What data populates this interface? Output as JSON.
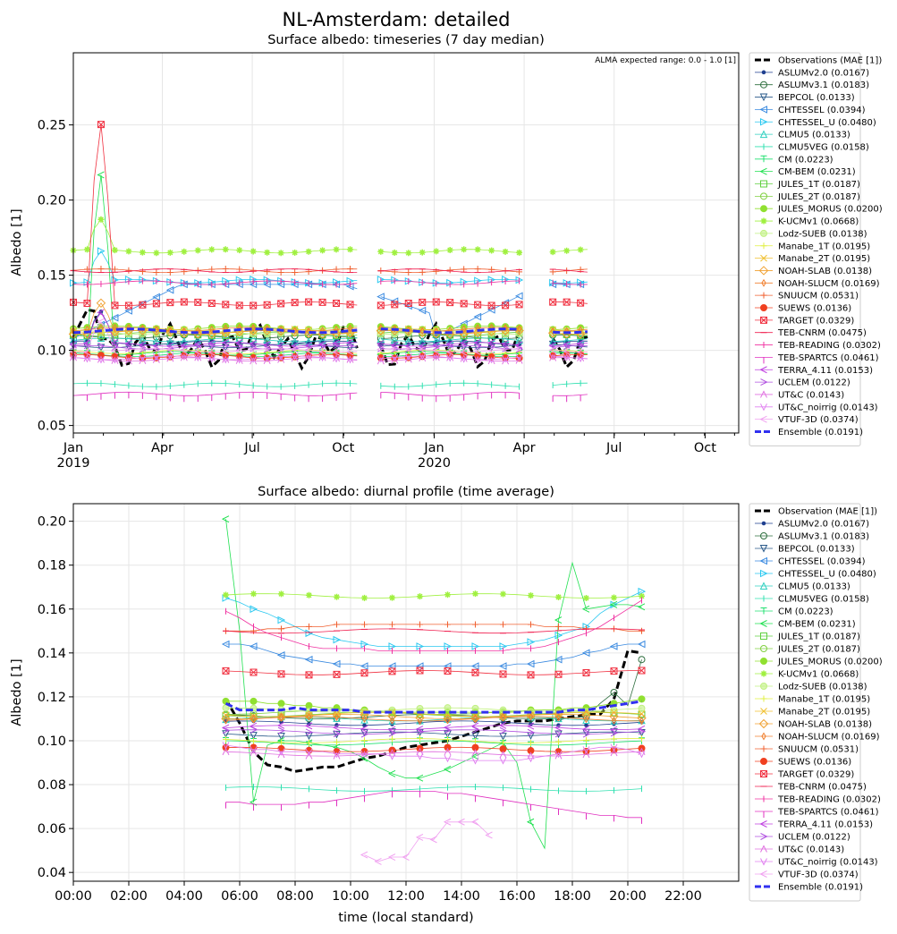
{
  "figure": {
    "title": "NL-Amsterdam: detailed",
    "note": "ALMA expected range: 0.0 - 1.0 [1]"
  },
  "chart_data": [
    {
      "type": "line",
      "title": "Surface albedo: timeseries (7 day median)",
      "xlabel": "",
      "ylabel": "Albedo [1]",
      "x_ticks": [
        "Jan",
        "Apr",
        "Jul",
        "Oct",
        "Jan",
        "Apr",
        "Jul",
        "Oct"
      ],
      "x_tick_years": [
        "2019",
        "",
        "",
        "",
        "2020",
        "",
        "",
        ""
      ],
      "y_ticks": [
        "0.05",
        "0.10",
        "0.15",
        "0.20",
        "0.25"
      ],
      "ylim": [
        0.045,
        0.298
      ],
      "grid": true,
      "legend_placement": "outside right",
      "segments": [
        [
          0,
          287
        ],
        [
          311,
          457
        ],
        [
          485,
          525
        ]
      ],
      "series": [
        {
          "name": "Observations (MAE [1])",
          "color": "#000000",
          "style": "dashed-thick",
          "base": 0.103,
          "pattern": "obs"
        },
        {
          "name": "ASLUMv2.0 (0.0167)",
          "color": "#1f3f8f",
          "marker": "dot",
          "base": 0.105
        },
        {
          "name": "ASLUMv3.1 (0.0183)",
          "color": "#2f6f3f",
          "marker": "circle",
          "base": 0.109
        },
        {
          "name": "BEPCOL (0.0133)",
          "color": "#2a5a8a",
          "marker": "tri-down",
          "base": 0.103
        },
        {
          "name": "CHTESSEL (0.0394)",
          "color": "#3a8ae0",
          "marker": "tri-left",
          "base": 0.143
        },
        {
          "name": "CHTESSEL_U (0.0480)",
          "color": "#2ac8f0",
          "marker": "tri-right",
          "base": 0.146
        },
        {
          "name": "CLMU5 (0.0133)",
          "color": "#30d0c0",
          "marker": "tri-up",
          "base": 0.107
        },
        {
          "name": "CLMU5VEG (0.0158)",
          "color": "#30e0b0",
          "marker": "vline",
          "base": 0.077
        },
        {
          "name": "CM (0.0223)",
          "color": "#20e070",
          "marker": "tick",
          "base": 0.097
        },
        {
          "name": "CM-BEM (0.0231)",
          "color": "#20e050",
          "marker": "chev-left",
          "base": 0.098
        },
        {
          "name": "JULES_1T (0.0187)",
          "color": "#60d040",
          "marker": "square",
          "base": 0.111
        },
        {
          "name": "JULES_2T (0.0187)",
          "color": "#80d040",
          "marker": "circle",
          "base": 0.112
        },
        {
          "name": "JULES_MORUS (0.0200)",
          "color": "#90e030",
          "marker": "oct",
          "base": 0.115
        },
        {
          "name": "K-UCMv1 (0.0668)",
          "color": "#a0f040",
          "marker": "star",
          "base": 0.166
        },
        {
          "name": "Lodz-SUEB (0.0138)",
          "color": "#c0f080",
          "marker": "circle-fill",
          "base": 0.112
        },
        {
          "name": "Manabe_1T (0.0195)",
          "color": "#e0f040",
          "marker": "plus",
          "base": 0.099
        },
        {
          "name": "Manabe_2T (0.0195)",
          "color": "#f0c030",
          "marker": "x",
          "base": 0.113
        },
        {
          "name": "NOAH-SLAB (0.0138)",
          "color": "#f0a030",
          "marker": "diamond",
          "base": 0.112
        },
        {
          "name": "NOAH-SLUCM (0.0169)",
          "color": "#f08030",
          "marker": "thin-diamond",
          "base": 0.114
        },
        {
          "name": "SNUUCM (0.0531)",
          "color": "#f06030",
          "marker": "plus",
          "base": 0.153
        },
        {
          "name": "SUEWS (0.0136)",
          "color": "#f04020",
          "marker": "oct",
          "base": 0.096
        },
        {
          "name": "TARGET (0.0329)",
          "color": "#f03040",
          "marker": "square-x",
          "base": 0.131
        },
        {
          "name": "TEB-CNRM (0.0475)",
          "color": "#f02050",
          "marker": "hline",
          "base": 0.153
        },
        {
          "name": "TEB-READING (0.0302)",
          "color": "#f030a0",
          "marker": "vline",
          "base": 0.145
        },
        {
          "name": "TEB-SPARTCS (0.0461)",
          "color": "#e030c0",
          "marker": "vline-down",
          "base": 0.071
        },
        {
          "name": "TERRA_4.11 (0.0153)",
          "color": "#c040e0",
          "marker": "chev-left",
          "base": 0.104
        },
        {
          "name": "UCLEM (0.0122)",
          "color": "#b050e0",
          "marker": "chev-right",
          "base": 0.102
        },
        {
          "name": "UT&C (0.0143)",
          "color": "#e070e0",
          "marker": "chev-up",
          "base": 0.094
        },
        {
          "name": "UT&C_noirrig (0.0143)",
          "color": "#e080f0",
          "marker": "chev-down",
          "base": 0.095
        },
        {
          "name": "VTUF-3D (0.0374)",
          "color": "#f0a0f0",
          "marker": "chev-left",
          "base": 0.1
        },
        {
          "name": "Ensemble (0.0191)",
          "color": "#3030f0",
          "style": "dashed-thick",
          "base": 0.113
        }
      ]
    },
    {
      "type": "line",
      "title": "Surface albedo: diurnal profile (time average)",
      "xlabel": "time (local standard)",
      "ylabel": "Albedo [1]",
      "x_ticks": [
        "00:00",
        "02:00",
        "04:00",
        "06:00",
        "08:00",
        "10:00",
        "12:00",
        "14:00",
        "16:00",
        "18:00",
        "20:00",
        "22:00"
      ],
      "y_ticks": [
        "0.04",
        "0.06",
        "0.08",
        "0.10",
        "0.12",
        "0.14",
        "0.16",
        "0.18",
        "0.20"
      ],
      "xlim": [
        0,
        24
      ],
      "ylim": [
        0.036,
        0.208
      ],
      "grid": true,
      "legend_placement": "outside right",
      "hours": [
        5.5,
        6,
        6.5,
        7,
        7.5,
        8,
        8.5,
        9,
        9.5,
        10,
        10.5,
        11,
        11.5,
        12,
        12.5,
        13,
        13.5,
        14,
        14.5,
        15,
        15.5,
        16,
        16.5,
        17,
        17.5,
        18,
        18.5,
        19,
        19.5,
        20,
        20.5
      ],
      "series": [
        {
          "name": "Observation (MAE [1])",
          "color": "#000000",
          "style": "dashed-thick",
          "values": [
            0.119,
            0.108,
            0.095,
            0.089,
            0.088,
            0.086,
            0.087,
            0.088,
            0.088,
            0.09,
            0.092,
            0.093,
            0.095,
            0.097,
            0.098,
            0.099,
            0.1,
            0.102,
            0.104,
            0.106,
            0.108,
            0.109,
            0.109,
            0.109,
            0.11,
            0.111,
            0.112,
            0.112,
            0.119,
            0.141,
            0.14
          ]
        },
        {
          "name": "ASLUMv2.0 (0.0167)",
          "color": "#1f3f8f",
          "marker": "dot",
          "base": 0.108
        },
        {
          "name": "ASLUMv3.1 (0.0183)",
          "color": "#2f6f3f",
          "marker": "circle",
          "base": 0.111,
          "tail": [
            0.117,
            0.122,
            0.116,
            0.137
          ]
        },
        {
          "name": "BEPCOL (0.0133)",
          "color": "#2a5a8a",
          "marker": "tri-down",
          "base": 0.103
        },
        {
          "name": "CHTESSEL (0.0394)",
          "color": "#3a8ae0",
          "marker": "tri-left",
          "values": [
            0.144,
            0.144,
            0.143,
            0.141,
            0.139,
            0.138,
            0.137,
            0.136,
            0.135,
            0.135,
            0.134,
            0.134,
            0.134,
            0.134,
            0.134,
            0.134,
            0.134,
            0.134,
            0.134,
            0.134,
            0.134,
            0.135,
            0.135,
            0.136,
            0.137,
            0.138,
            0.14,
            0.141,
            0.143,
            0.144,
            0.144
          ]
        },
        {
          "name": "CHTESSEL_U (0.0480)",
          "color": "#2ac8f0",
          "marker": "tri-right",
          "values": [
            0.165,
            0.163,
            0.16,
            0.158,
            0.155,
            0.152,
            0.149,
            0.147,
            0.146,
            0.145,
            0.144,
            0.143,
            0.143,
            0.143,
            0.143,
            0.143,
            0.143,
            0.143,
            0.143,
            0.143,
            0.143,
            0.144,
            0.145,
            0.146,
            0.148,
            0.15,
            0.152,
            0.158,
            0.162,
            0.165,
            0.168
          ]
        },
        {
          "name": "CLMU5 (0.0133)",
          "color": "#30d0c0",
          "marker": "tri-up",
          "base": 0.11
        },
        {
          "name": "CLMU5VEG (0.0158)",
          "color": "#30e0b0",
          "marker": "vline",
          "base": 0.078
        },
        {
          "name": "CM (0.0223)",
          "color": "#20e070",
          "marker": "tick",
          "base": 0.099
        },
        {
          "name": "CM-BEM (0.0231)",
          "color": "#20e050",
          "marker": "chev-left",
          "values": [
            0.201,
            0.15,
            0.072,
            0.098,
            0.1,
            0.1,
            0.099,
            0.098,
            0.097,
            0.095,
            0.092,
            0.088,
            0.085,
            0.083,
            0.083,
            0.085,
            0.087,
            0.09,
            0.093,
            0.096,
            0.099,
            0.09,
            0.063,
            0.051,
            0.155,
            0.181,
            0.16,
            0.161,
            0.162,
            0.162,
            0.161
          ]
        },
        {
          "name": "JULES_1T (0.0187)",
          "color": "#60d040",
          "marker": "square",
          "base": 0.112
        },
        {
          "name": "JULES_2T (0.0187)",
          "color": "#80d040",
          "marker": "circle",
          "base": 0.113
        },
        {
          "name": "JULES_MORUS (0.0200)",
          "color": "#90e030",
          "marker": "oct",
          "values": [
            0.118,
            0.118,
            0.118,
            0.117,
            0.117,
            0.116,
            0.116,
            0.115,
            0.115,
            0.114,
            0.114,
            0.113,
            0.113,
            0.113,
            0.113,
            0.113,
            0.113,
            0.113,
            0.113,
            0.113,
            0.113,
            0.113,
            0.114,
            0.114,
            0.114,
            0.115,
            0.115,
            0.116,
            0.117,
            0.118,
            0.119
          ]
        },
        {
          "name": "K-UCMv1 (0.0668)",
          "color": "#a0f040",
          "marker": "star",
          "base": 0.166
        },
        {
          "name": "Lodz-SUEB (0.0138)",
          "color": "#c0f080",
          "marker": "circle-fill",
          "base": 0.114
        },
        {
          "name": "Manabe_1T (0.0195)",
          "color": "#e0f040",
          "marker": "plus",
          "base": 0.1
        },
        {
          "name": "Manabe_2T (0.0195)",
          "color": "#f0c030",
          "marker": "x",
          "base": 0.112
        },
        {
          "name": "NOAH-SLAB (0.0138)",
          "color": "#f0a030",
          "marker": "diamond",
          "base": 0.111
        },
        {
          "name": "NOAH-SLUCM (0.0169)",
          "color": "#f08030",
          "marker": "thin-diamond",
          "base": 0.11
        },
        {
          "name": "SNUUCM (0.0531)",
          "color": "#f06030",
          "marker": "plus",
          "values": [
            0.15,
            0.15,
            0.15,
            0.151,
            0.151,
            0.152,
            0.152,
            0.152,
            0.153,
            0.153,
            0.153,
            0.153,
            0.153,
            0.153,
            0.153,
            0.153,
            0.153,
            0.153,
            0.153,
            0.153,
            0.153,
            0.153,
            0.153,
            0.152,
            0.152,
            0.152,
            0.151,
            0.151,
            0.151,
            0.15,
            0.15
          ]
        },
        {
          "name": "SUEWS (0.0136)",
          "color": "#f04020",
          "marker": "oct",
          "base": 0.096
        },
        {
          "name": "TARGET (0.0329)",
          "color": "#f03040",
          "marker": "square-x",
          "base": 0.131
        },
        {
          "name": "TEB-CNRM (0.0475)",
          "color": "#f02050",
          "marker": "hline",
          "base": 0.15
        },
        {
          "name": "TEB-READING (0.0302)",
          "color": "#f030a0",
          "marker": "vline",
          "values": [
            0.159,
            0.156,
            0.152,
            0.149,
            0.147,
            0.145,
            0.143,
            0.142,
            0.142,
            0.142,
            0.142,
            0.141,
            0.141,
            0.141,
            0.141,
            0.141,
            0.141,
            0.141,
            0.141,
            0.141,
            0.141,
            0.142,
            0.142,
            0.143,
            0.145,
            0.147,
            0.149,
            0.152,
            0.156,
            0.16,
            0.164
          ]
        },
        {
          "name": "TEB-SPARTCS (0.0461)",
          "color": "#e030c0",
          "marker": "vline-down",
          "values": [
            0.072,
            0.072,
            0.071,
            0.071,
            0.071,
            0.071,
            0.072,
            0.072,
            0.073,
            0.074,
            0.075,
            0.076,
            0.077,
            0.077,
            0.077,
            0.077,
            0.076,
            0.076,
            0.075,
            0.074,
            0.073,
            0.072,
            0.071,
            0.07,
            0.069,
            0.068,
            0.067,
            0.066,
            0.066,
            0.065,
            0.065
          ]
        },
        {
          "name": "TERRA_4.11 (0.0153)",
          "color": "#c040e0",
          "marker": "chev-left",
          "base": 0.106
        },
        {
          "name": "UCLEM (0.0122)",
          "color": "#b050e0",
          "marker": "chev-right",
          "base": 0.104
        },
        {
          "name": "UT&C (0.0143)",
          "color": "#e070e0",
          "marker": "chev-up",
          "base": 0.094
        },
        {
          "name": "UT&C_noirrig (0.0143)",
          "color": "#e080f0",
          "marker": "chev-down",
          "values": [
            0.098,
            0.097,
            0.096,
            0.096,
            0.095,
            0.095,
            0.095,
            0.095,
            0.094,
            0.094,
            0.094,
            0.094,
            0.093,
            0.093,
            0.093,
            0.092,
            0.092,
            0.091,
            0.091,
            0.091,
            0.091,
            0.091,
            0.092,
            0.093,
            0.094,
            0.095,
            0.096,
            0.097,
            0.097,
            0.096,
            0.094
          ]
        },
        {
          "name": "VTUF-3D (0.0374)",
          "color": "#f0a0f0",
          "marker": "chev-left",
          "hours_override": [
            10.5,
            11,
            11.5,
            12,
            12.5,
            13,
            13.5,
            14,
            14.5,
            15
          ],
          "values": [
            0.048,
            0.045,
            0.047,
            0.047,
            0.056,
            0.055,
            0.063,
            0.063,
            0.063,
            0.057
          ]
        },
        {
          "name": "Ensemble (0.0191)",
          "color": "#3030f0",
          "style": "dashed-thick",
          "values": [
            0.117,
            0.114,
            0.114,
            0.114,
            0.114,
            0.115,
            0.114,
            0.114,
            0.114,
            0.114,
            0.113,
            0.113,
            0.113,
            0.113,
            0.113,
            0.113,
            0.113,
            0.113,
            0.113,
            0.113,
            0.113,
            0.113,
            0.113,
            0.113,
            0.113,
            0.114,
            0.114,
            0.115,
            0.116,
            0.117,
            0.118
          ]
        }
      ]
    }
  ]
}
